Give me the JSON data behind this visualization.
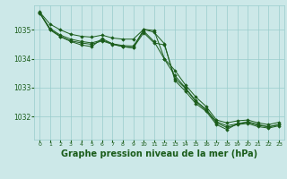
{
  "bg_color": "#cce8e8",
  "grid_color": "#99cccc",
  "line_color": "#1a5c1a",
  "marker_color": "#1a5c1a",
  "title": "Graphe pression niveau de la mer (hPa)",
  "title_fontsize": 7,
  "ylim": [
    1031.2,
    1035.85
  ],
  "xlim": [
    -0.5,
    23.5
  ],
  "yticks": [
    1032,
    1033,
    1034,
    1035
  ],
  "xticks": [
    0,
    1,
    2,
    3,
    4,
    5,
    6,
    7,
    8,
    9,
    10,
    11,
    12,
    13,
    14,
    15,
    16,
    17,
    18,
    19,
    20,
    21,
    22,
    23
  ],
  "series": [
    {
      "x": [
        0,
        1,
        2,
        3,
        4,
        5,
        6,
        7,
        8,
        9,
        10,
        11,
        12,
        13,
        14,
        15,
        16,
        17,
        18,
        19,
        20,
        21,
        22,
        23
      ],
      "y": [
        1035.62,
        1035.2,
        1035.0,
        1034.85,
        1034.78,
        1034.75,
        1034.82,
        1034.72,
        1034.68,
        1034.68,
        1035.02,
        1034.98,
        1034.0,
        1033.6,
        1033.1,
        1032.68,
        1032.35,
        1031.88,
        1031.78,
        1031.85,
        1031.88,
        1031.78,
        1031.72,
        1031.8
      ]
    },
    {
      "x": [
        0,
        1,
        2,
        3,
        4,
        5,
        6,
        7,
        8,
        9,
        10,
        11,
        12,
        13,
        14,
        15,
        16,
        17,
        18,
        19,
        20,
        21,
        22,
        23
      ],
      "y": [
        1035.6,
        1035.05,
        1034.82,
        1034.68,
        1034.6,
        1034.55,
        1034.65,
        1034.52,
        1034.46,
        1034.44,
        1034.96,
        1034.6,
        1033.98,
        1033.42,
        1033.0,
        1032.55,
        1032.25,
        1031.82,
        1031.68,
        1031.75,
        1031.8,
        1031.7,
        1031.64,
        1031.72
      ]
    },
    {
      "x": [
        0,
        1,
        2,
        3,
        4,
        5,
        6,
        7,
        8,
        9,
        10,
        11,
        12,
        13,
        14,
        15,
        16,
        17,
        18,
        19,
        20,
        21,
        22,
        23
      ],
      "y": [
        1035.58,
        1035.02,
        1034.78,
        1034.62,
        1034.55,
        1034.5,
        1034.62,
        1034.5,
        1034.42,
        1034.38,
        1034.9,
        1034.55,
        1034.48,
        1033.32,
        1032.98,
        1032.52,
        1032.22,
        1031.78,
        1031.62,
        1031.72,
        1031.76,
        1031.65,
        1031.6,
        1031.68
      ]
    },
    {
      "x": [
        0,
        1,
        2,
        3,
        4,
        5,
        6,
        7,
        8,
        9,
        10,
        11,
        12,
        13,
        14,
        15,
        16,
        17,
        18,
        19,
        20,
        21,
        22,
        23
      ],
      "y": [
        1035.6,
        1035.0,
        1034.76,
        1034.6,
        1034.48,
        1034.42,
        1034.7,
        1034.52,
        1034.42,
        1034.38,
        1035.02,
        1034.92,
        1034.52,
        1033.25,
        1032.88,
        1032.45,
        1032.18,
        1031.72,
        1031.55,
        1031.75,
        1031.82,
        1031.72,
        1031.65,
        1031.72
      ]
    }
  ]
}
